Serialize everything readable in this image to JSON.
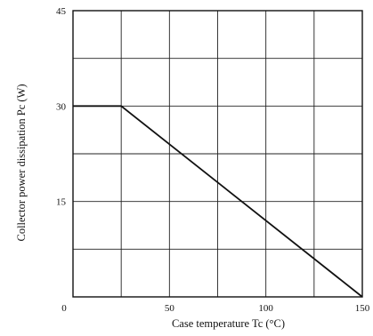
{
  "chart_data": {
    "type": "line",
    "title": "",
    "xlabel": "Case temperature  Tc (°C)",
    "ylabel": "Collector power dissipation  Pc (W)",
    "xlim": [
      0,
      150
    ],
    "ylim": [
      0,
      45
    ],
    "x_ticks": [
      {
        "value": 0,
        "label": "0"
      },
      {
        "value": 50,
        "label": "50"
      },
      {
        "value": 100,
        "label": "100"
      },
      {
        "value": 150,
        "label": "150"
      }
    ],
    "y_ticks": [
      {
        "value": 15,
        "label": "15"
      },
      {
        "value": 30,
        "label": "30"
      },
      {
        "value": 45,
        "label": "45"
      }
    ],
    "grid": true,
    "grid_x_step": 25,
    "grid_y_step": 7.5,
    "series": [
      {
        "x": [
          0,
          25,
          150
        ],
        "y": [
          30,
          30,
          0
        ]
      }
    ],
    "line_color": "#111111",
    "grid_color": "#222222"
  }
}
